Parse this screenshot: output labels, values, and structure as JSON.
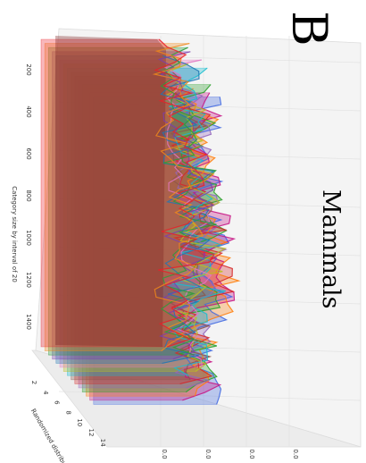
{
  "panel_letter": "B",
  "chart_data": {
    "type": "area",
    "projection": "3d",
    "title": "Mammals",
    "xlabel": "Category size by interval of 20",
    "ylabel": "Randomized distribution",
    "zlabel": "",
    "x_ticks": [
      "200",
      "400",
      "600",
      "800",
      "1000",
      "1200",
      "1400"
    ],
    "y_ticks": [
      "2",
      "4",
      "6",
      "8",
      "10",
      "12",
      "14"
    ],
    "z_ticks": [
      "0.0",
      "0.0",
      "0.0",
      "0.0"
    ],
    "xlim": [
      0,
      1600
    ],
    "ylim": [
      0,
      15
    ],
    "grid": true,
    "legend": "none",
    "series_count": 15,
    "series_colors": [
      "#e8202a",
      "#f08a1c",
      "#2a9d3a",
      "#7b3fb0",
      "#1f77b4",
      "#e377c2",
      "#bcbd22",
      "#17becf",
      "#8c564b",
      "#d62728",
      "#9467bd",
      "#2ca02c",
      "#ff7f0e",
      "#c71585",
      "#4169e1"
    ]
  }
}
